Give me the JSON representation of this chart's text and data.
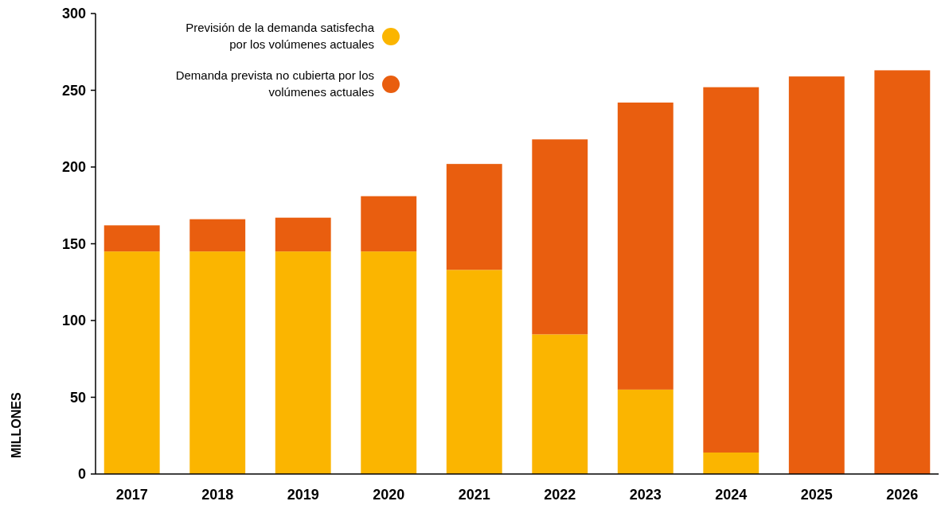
{
  "chart_data": {
    "type": "bar",
    "stacked": true,
    "ylabel": "MILLONES",
    "categories": [
      "2017",
      "2018",
      "2019",
      "2020",
      "2021",
      "2022",
      "2023",
      "2024",
      "2025",
      "2026"
    ],
    "series": [
      {
        "name": "Previsión de la demanda satisfecha por los volúmenes actuales",
        "color": "#fbb500",
        "values": [
          145,
          145,
          145,
          145,
          133,
          91,
          55,
          14,
          0,
          0
        ]
      },
      {
        "name": "Demanda prevista no cubierta por los volúmenes actuales",
        "color": "#e95e0f",
        "values": [
          17,
          21,
          22,
          36,
          69,
          127,
          187,
          238,
          259,
          263
        ]
      }
    ],
    "ylim": [
      0,
      300
    ],
    "yticks": [
      0,
      50,
      100,
      150,
      200,
      250,
      300
    ],
    "grid": false,
    "legend": "top"
  }
}
